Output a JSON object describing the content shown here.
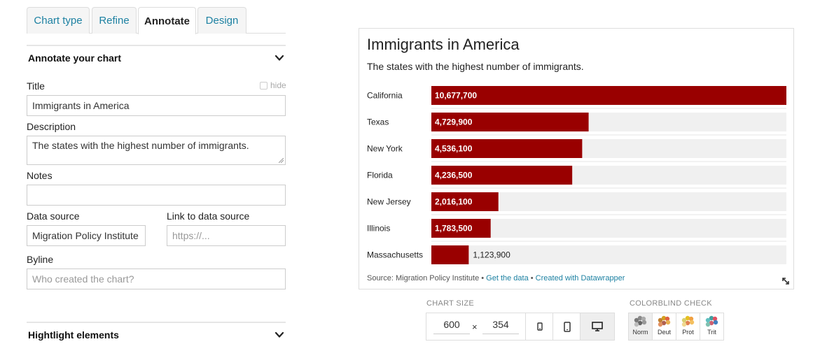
{
  "tabs": [
    {
      "label": "Chart type"
    },
    {
      "label": "Refine"
    },
    {
      "label": "Annotate"
    },
    {
      "label": "Design"
    }
  ],
  "annotate_section": {
    "title": "Annotate your chart"
  },
  "highlight_section": {
    "title": "Hightlight elements"
  },
  "form": {
    "title_label": "Title",
    "title_hide_label": "hide",
    "title_value": "Immigrants in America",
    "description_label": "Description",
    "description_value": "The states with the highest number of immigrants.",
    "notes_label": "Notes",
    "notes_value": "",
    "data_source_label": "Data source",
    "data_source_value": "Migration Policy Institute",
    "link_label": "Link to data source",
    "link_placeholder": "https://...",
    "byline_label": "Byline",
    "byline_placeholder": "Who created the chart?"
  },
  "chart": {
    "title": "Immigrants in America",
    "description": "The states with the highest number of immigrants.",
    "footer_source": "Source: Migration Policy Institute",
    "footer_sep": " • ",
    "footer_get_data": "Get the data",
    "footer_created": "Created with Datawrapper"
  },
  "chart_data": {
    "type": "bar",
    "orientation": "horizontal",
    "title": "Immigrants in America",
    "subtitle": "The states with the highest number of immigrants.",
    "categories": [
      "California",
      "Texas",
      "New York",
      "Florida",
      "New Jersey",
      "Illinois",
      "Massachusetts"
    ],
    "values": [
      10677700,
      4729900,
      4536100,
      4236500,
      2016100,
      1783500,
      1123900
    ],
    "labels": [
      "10,677,700",
      "4,729,900",
      "4,536,100",
      "4,236,500",
      "2,016,100",
      "1,783,500",
      "1,123,900"
    ],
    "xlim": [
      0,
      10677700
    ],
    "bar_color": "#990000",
    "track_color": "#f0f0f0",
    "source": "Migration Policy Institute"
  },
  "chart_size": {
    "label": "CHART SIZE",
    "width": "600",
    "x_symbol": "×",
    "height": "354"
  },
  "colorblind": {
    "label": "COLORBLIND CHECK",
    "modes": [
      {
        "label": "Norm",
        "colors": [
          "#888888",
          "#aaaaaa",
          "#777777",
          "#999999",
          "#666666",
          "#bbbbbb"
        ]
      },
      {
        "label": "Deut",
        "colors": [
          "#d4a020",
          "#e06040",
          "#c08030",
          "#e8b050",
          "#b06050",
          "#e09060"
        ]
      },
      {
        "label": "Prot",
        "colors": [
          "#e6c020",
          "#f0a040",
          "#d8d070",
          "#f4c060",
          "#e08050",
          "#f0d890"
        ]
      },
      {
        "label": "Trit",
        "colors": [
          "#40a0a0",
          "#e05060",
          "#60c0c0",
          "#4080c0",
          "#d06070",
          "#80c0b0"
        ]
      }
    ]
  },
  "colors": {
    "accent": "#1d81a2",
    "bar": "#990000"
  }
}
